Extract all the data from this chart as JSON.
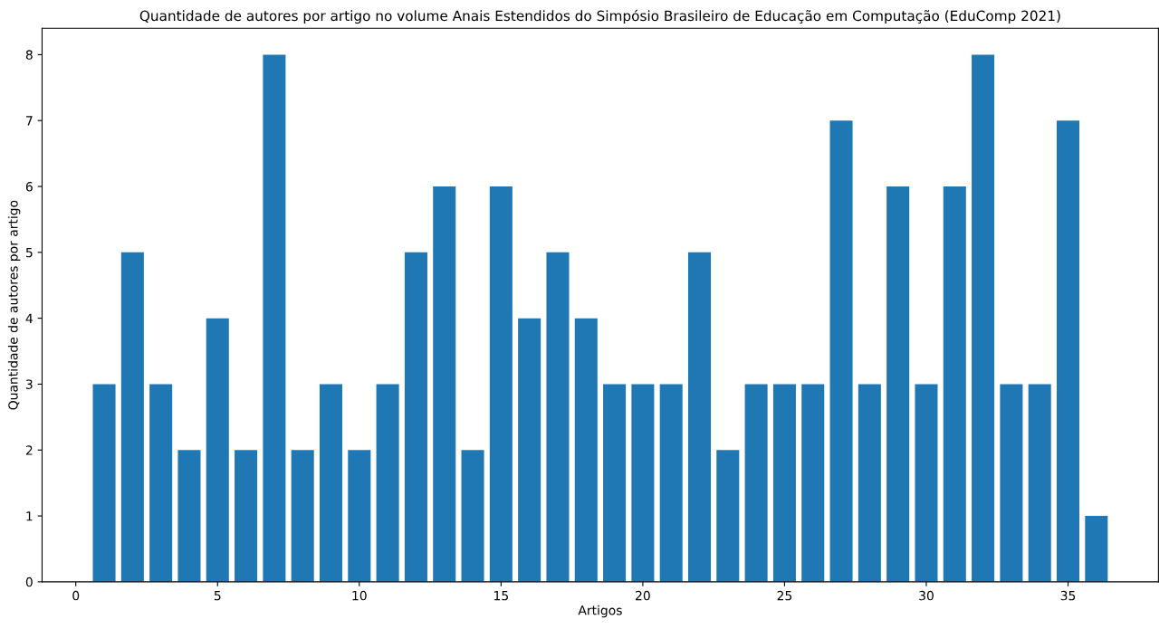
{
  "chart_data": {
    "type": "bar",
    "title": "Quantidade de autores por artigo no volume Anais Estendidos do Simpósio Brasileiro de Educação em Computação (EduComp 2021)",
    "xlabel": "Artigos",
    "ylabel": "Quantidade de autores por artigo",
    "x": [
      1,
      2,
      3,
      4,
      5,
      6,
      7,
      8,
      9,
      10,
      11,
      12,
      13,
      14,
      15,
      16,
      17,
      18,
      19,
      20,
      21,
      22,
      23,
      24,
      25,
      26,
      27,
      28,
      29,
      30,
      31,
      32,
      33,
      34,
      35,
      36
    ],
    "values": [
      3,
      5,
      3,
      2,
      4,
      2,
      8,
      2,
      3,
      2,
      3,
      5,
      6,
      2,
      6,
      4,
      5,
      4,
      3,
      3,
      3,
      5,
      2,
      3,
      3,
      3,
      7,
      3,
      6,
      3,
      6,
      8,
      3,
      3,
      7,
      1
    ],
    "color": "#1f77b4",
    "xlim": [
      -1.19,
      38.19
    ],
    "xticks": [
      0,
      5,
      10,
      15,
      20,
      25,
      30,
      35
    ],
    "ylim": [
      0,
      8.4
    ],
    "yticks": [
      0,
      1,
      2,
      3,
      4,
      5,
      6,
      7,
      8
    ],
    "grid": false,
    "legend": false
  }
}
